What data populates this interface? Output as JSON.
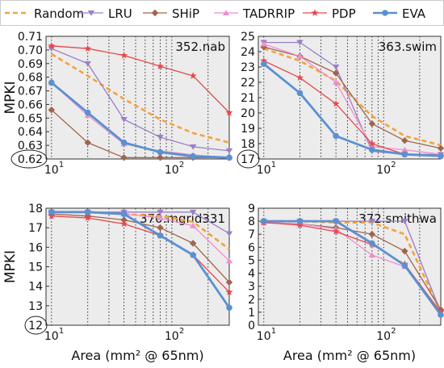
{
  "legend": {
    "placement": "top",
    "entries": [
      {
        "name": "Random",
        "color": "#f5a23a",
        "marker": "none",
        "dash": true
      },
      {
        "name": "LRU",
        "color": "#9b7fc7",
        "marker": "tri-down"
      },
      {
        "name": "SHiP",
        "color": "#a0644c",
        "marker": "diamond"
      },
      {
        "name": "TADRRIP",
        "color": "#ef8fd0",
        "marker": "tri-up"
      },
      {
        "name": "PDP",
        "color": "#e8474a",
        "marker": "star"
      },
      {
        "name": "EVA",
        "color": "#5b90d1",
        "marker": "circle"
      }
    ]
  },
  "chart_data": [
    {
      "type": "line",
      "title": "352.nab",
      "ylabel": "MPKI",
      "xlabel": "",
      "xscale": "log",
      "xlim": [
        9,
        300
      ],
      "ylim": [
        0.62,
        0.71
      ],
      "yticks": [
        "0.62",
        "0.63",
        "0.64",
        "0.65",
        "0.66",
        "0.67",
        "0.68",
        "0.69",
        "0.70",
        "0.71"
      ],
      "circled_tick": "0.62",
      "xticks": [
        {
          "v": 10,
          "label": "10",
          "sup": "1"
        },
        {
          "v": 100,
          "label": "10",
          "sup": "2"
        }
      ],
      "grid": "vertical-dotted",
      "x": [
        10,
        20,
        40,
        80,
        150,
        300
      ],
      "series": [
        {
          "name": "Random",
          "values": [
            0.697,
            0.681,
            0.664,
            0.649,
            0.639,
            0.632
          ]
        },
        {
          "name": "LRU",
          "values": [
            0.701,
            0.69,
            0.649,
            0.636,
            0.629,
            0.626
          ]
        },
        {
          "name": "SHiP",
          "values": [
            0.656,
            0.632,
            0.621,
            0.621,
            0.621,
            0.621
          ]
        },
        {
          "name": "TADRRIP",
          "values": [
            0.676,
            0.652,
            0.631,
            0.626,
            0.623,
            0.621
          ]
        },
        {
          "name": "PDP",
          "values": [
            0.703,
            0.701,
            0.696,
            0.688,
            0.681,
            0.654
          ]
        },
        {
          "name": "EVA",
          "values": [
            0.676,
            0.654,
            0.632,
            0.625,
            0.622,
            0.621
          ]
        }
      ]
    },
    {
      "type": "line",
      "title": "363.swim",
      "ylabel": "",
      "xlabel": "",
      "xscale": "log",
      "xlim": [
        9,
        300
      ],
      "ylim": [
        17,
        25
      ],
      "yticks": [
        "17",
        "18",
        "19",
        "20",
        "21",
        "22",
        "23",
        "24",
        "25"
      ],
      "circled_tick": "17",
      "xticks": [
        {
          "v": 10,
          "label": "10",
          "sup": "1"
        },
        {
          "v": 100,
          "label": "10",
          "sup": "2"
        }
      ],
      "grid": "vertical-dotted",
      "x": [
        10,
        20,
        40,
        80,
        150,
        300
      ],
      "series": [
        {
          "name": "Random",
          "values": [
            24.2,
            23.4,
            22.1,
            19.8,
            18.5,
            17.9
          ]
        },
        {
          "name": "LRU",
          "values": [
            24.6,
            24.6,
            23.0,
            17.5,
            17.3,
            17.3
          ]
        },
        {
          "name": "SHiP",
          "values": [
            24.3,
            23.7,
            22.6,
            19.3,
            18.2,
            17.7
          ]
        },
        {
          "name": "TADRRIP",
          "values": [
            24.5,
            23.7,
            22.0,
            17.8,
            17.6,
            17.3
          ]
        },
        {
          "name": "PDP",
          "values": [
            23.4,
            22.3,
            20.6,
            18.0,
            17.3,
            17.2
          ]
        },
        {
          "name": "EVA",
          "values": [
            23.2,
            21.3,
            18.5,
            17.6,
            17.3,
            17.2
          ]
        }
      ]
    },
    {
      "type": "line",
      "title": "370.mgrid331",
      "ylabel": "MPKI",
      "xlabel": "Area (mm² @ 65nm)",
      "xscale": "log",
      "xlim": [
        9,
        300
      ],
      "ylim": [
        12,
        18
      ],
      "yticks": [
        "12",
        "13",
        "14",
        "15",
        "16",
        "17",
        "18"
      ],
      "circled_tick": "12",
      "xticks": [
        {
          "v": 10,
          "label": "10",
          "sup": "1"
        },
        {
          "v": 100,
          "label": "10",
          "sup": "2"
        }
      ],
      "grid": "vertical-dotted",
      "x": [
        10,
        20,
        40,
        80,
        150,
        300
      ],
      "series": [
        {
          "name": "Random",
          "values": [
            17.8,
            17.8,
            17.7,
            17.6,
            17.3,
            15.9
          ]
        },
        {
          "name": "LRU",
          "values": [
            17.8,
            17.8,
            17.8,
            17.8,
            17.8,
            16.7
          ]
        },
        {
          "name": "SHiP",
          "values": [
            17.7,
            17.6,
            17.4,
            17.0,
            16.2,
            14.2
          ]
        },
        {
          "name": "TADRRIP",
          "values": [
            17.8,
            17.8,
            17.7,
            17.5,
            17.1,
            15.3
          ]
        },
        {
          "name": "PDP",
          "values": [
            17.6,
            17.5,
            17.2,
            16.6,
            15.6,
            13.7
          ]
        },
        {
          "name": "EVA",
          "values": [
            17.8,
            17.8,
            17.7,
            16.6,
            15.6,
            12.9
          ]
        }
      ]
    },
    {
      "type": "line",
      "title": "372.smithwa",
      "ylabel": "",
      "xlabel": "Area (mm² @ 65nm)",
      "xscale": "log",
      "xlim": [
        9,
        300
      ],
      "ylim": [
        0,
        9
      ],
      "yticks": [
        "0",
        "1",
        "2",
        "3",
        "4",
        "5",
        "6",
        "7",
        "8",
        "9"
      ],
      "circled_tick": "",
      "xticks": [
        {
          "v": 10,
          "label": "10",
          "sup": "1"
        },
        {
          "v": 100,
          "label": "10",
          "sup": "2"
        }
      ],
      "grid": "vertical-dotted",
      "x": [
        10,
        20,
        40,
        80,
        150,
        300
      ],
      "series": [
        {
          "name": "Random",
          "values": [
            8.0,
            8.0,
            7.9,
            7.9,
            7.0,
            1.0
          ]
        },
        {
          "name": "LRU",
          "values": [
            8.0,
            8.0,
            8.0,
            8.0,
            8.0,
            1.0
          ]
        },
        {
          "name": "SHiP",
          "values": [
            7.9,
            7.8,
            7.5,
            7.0,
            5.7,
            1.2
          ]
        },
        {
          "name": "TADRRIP",
          "values": [
            7.9,
            7.8,
            7.4,
            5.4,
            4.5,
            1.0
          ]
        },
        {
          "name": "PDP",
          "values": [
            7.9,
            7.7,
            7.2,
            6.2,
            4.7,
            1.0
          ]
        },
        {
          "name": "EVA",
          "values": [
            8.0,
            8.0,
            8.0,
            6.3,
            4.6,
            0.8
          ]
        }
      ]
    }
  ]
}
